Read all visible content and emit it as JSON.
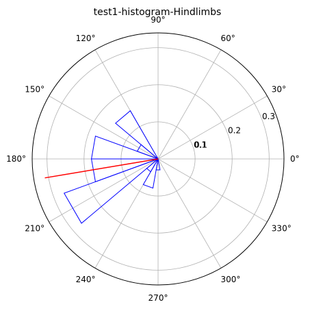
{
  "chart_data": {
    "type": "polar-histogram",
    "title": "test1-histogram-Hindlimbs",
    "angle_ticks": [
      0,
      30,
      60,
      90,
      120,
      150,
      180,
      210,
      240,
      270,
      300,
      330
    ],
    "angle_labels": [
      "0°",
      "30°",
      "60°",
      "90°",
      "120°",
      "150°",
      "180°",
      "210°",
      "240°",
      "270°",
      "300°",
      "330°"
    ],
    "radial_ticks": [
      0.1,
      0.2,
      0.3
    ],
    "radial_labels": [
      "0.1",
      "0.2",
      "0.3"
    ],
    "radial_extra_label": "0.1",
    "rmax": 0.34,
    "grid": true,
    "bars": [
      {
        "start_deg": 120,
        "end_deg": 140,
        "value": 0.15
      },
      {
        "start_deg": 140,
        "end_deg": 160,
        "value": 0.06
      },
      {
        "start_deg": 160,
        "end_deg": 180,
        "value": 0.18
      },
      {
        "start_deg": 180,
        "end_deg": 200,
        "value": 0.18
      },
      {
        "start_deg": 200,
        "end_deg": 220,
        "value": 0.27
      },
      {
        "start_deg": 220,
        "end_deg": 240,
        "value": 0.04
      },
      {
        "start_deg": 240,
        "end_deg": 260,
        "value": 0.08
      },
      {
        "start_deg": 260,
        "end_deg": 280,
        "value": 0.03
      }
    ],
    "mean_direction": {
      "angle_deg": 189.5,
      "length": 0.31
    },
    "colors": {
      "bars": "#0000ff",
      "mean_line": "#ff0000",
      "grid": "#b0b0b0",
      "frame": "#000000"
    }
  }
}
